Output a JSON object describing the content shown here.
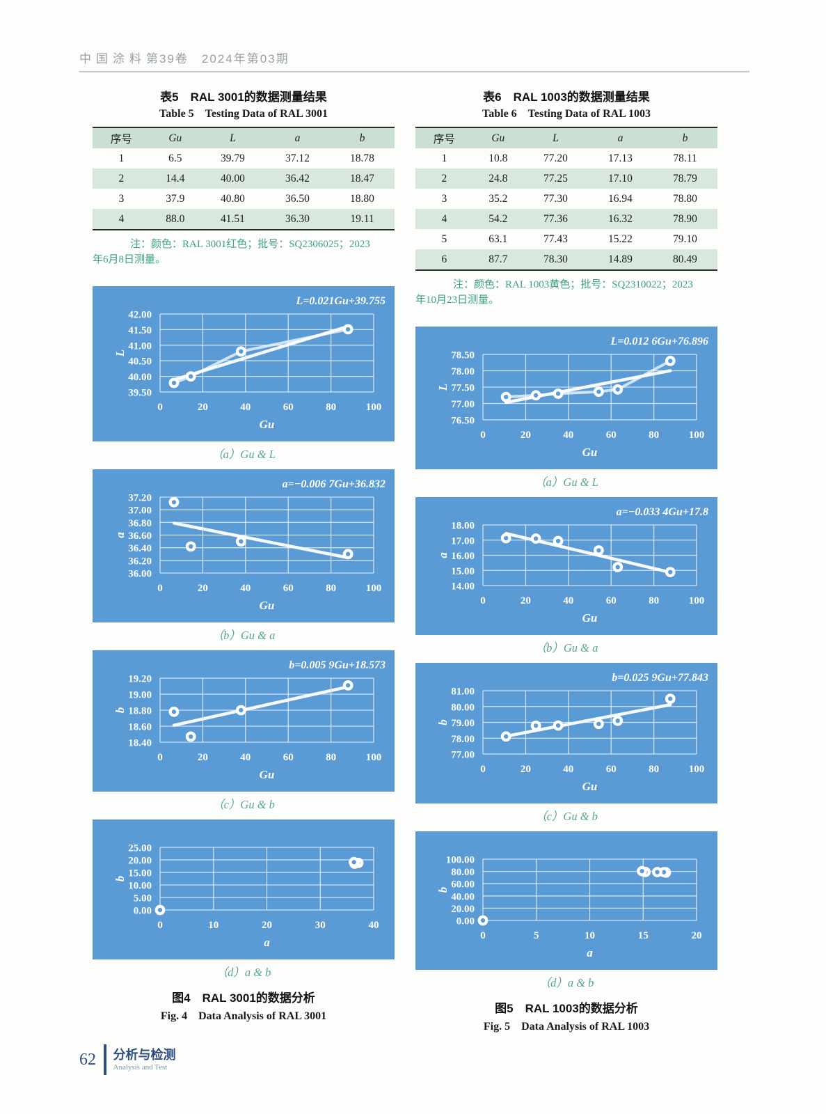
{
  "header": {
    "left": "中国涂料",
    "right": "第39卷　2024年第03期"
  },
  "footer": {
    "page_number": "62",
    "section_cn": "分析与检测",
    "section_en": "Analysis and Test"
  },
  "colors": {
    "chart_bg": "#5b9bd5",
    "chart_fg": "#ffffff",
    "table_header_bg": "#cbdfd2",
    "table_stripe_bg": "#d9e8dc",
    "note_green": "#3da183",
    "caption_green": "#55a789",
    "footer_blue": "#2d4d80"
  },
  "tables": [
    {
      "title_cn": "表5　RAL 3001的数据测量结果",
      "title_en": "Table 5　Testing Data of RAL 3001",
      "headers": [
        "序号",
        "Gu",
        "L",
        "a",
        "b"
      ],
      "rows": [
        [
          "1",
          "6.5",
          "39.79",
          "37.12",
          "18.78"
        ],
        [
          "2",
          "14.4",
          "40.00",
          "36.42",
          "18.47"
        ],
        [
          "3",
          "37.9",
          "40.80",
          "36.50",
          "18.80"
        ],
        [
          "4",
          "88.0",
          "41.51",
          "36.30",
          "19.11"
        ]
      ],
      "note_line1": "注：颜色：RAL 3001红色；批号：SQ2306025；2023",
      "note_line2": "年6月8日测量。"
    },
    {
      "title_cn": "表6　RAL 1003的数据测量结果",
      "title_en": "Table 6　Testing Data of RAL 1003",
      "headers": [
        "序号",
        "Gu",
        "L",
        "a",
        "b"
      ],
      "rows": [
        [
          "1",
          "10.8",
          "77.20",
          "17.13",
          "78.11"
        ],
        [
          "2",
          "24.8",
          "77.25",
          "17.10",
          "78.79"
        ],
        [
          "3",
          "35.2",
          "77.30",
          "16.94",
          "78.80"
        ],
        [
          "4",
          "54.2",
          "77.36",
          "16.32",
          "78.90"
        ],
        [
          "5",
          "63.1",
          "77.43",
          "15.22",
          "79.10"
        ],
        [
          "6",
          "87.7",
          "78.30",
          "14.89",
          "80.49"
        ]
      ],
      "note_line1": "注：颜色：RAL 1003黄色；批号：SQ2310022；2023",
      "note_line2": "年10月23日测量。"
    }
  ],
  "figures": [
    {
      "caption_cn": "图4　RAL 3001的数据分析",
      "caption_en": "Fig. 4　Data Analysis of RAL 3001"
    },
    {
      "caption_cn": "图5　RAL 1003的数据分析",
      "caption_en": "Fig. 5　Data Analysis of RAL 1003"
    }
  ],
  "chart_data": [
    {
      "type": "scatter",
      "caption": "（a）Gu & L",
      "equation": "L=0.021Gu+39.755",
      "xlabel": "Gu",
      "ylabel": "L",
      "xlim": [
        0,
        100
      ],
      "xticks": [
        "0",
        "20",
        "40",
        "60",
        "80",
        "100"
      ],
      "ylim": [
        39.5,
        42.0
      ],
      "yticks": [
        "39.50",
        "40.00",
        "40.50",
        "41.00",
        "41.50",
        "42.00"
      ],
      "points": [
        [
          6.5,
          39.79
        ],
        [
          14.4,
          40.0
        ],
        [
          37.9,
          40.8
        ],
        [
          88.0,
          41.51
        ]
      ],
      "connect": true,
      "trend": {
        "slope": 0.021,
        "intercept": 39.755,
        "x0": 6.5,
        "x1": 88.0
      }
    },
    {
      "type": "scatter",
      "caption": "（b）Gu & a",
      "equation": "a=−0.006 7Gu+36.832",
      "xlabel": "Gu",
      "ylabel": "a",
      "xlim": [
        0,
        100
      ],
      "xticks": [
        "0",
        "20",
        "40",
        "60",
        "80",
        "100"
      ],
      "ylim": [
        36.0,
        37.2
      ],
      "yticks": [
        "36.00",
        "36.20",
        "36.40",
        "36.60",
        "36.80",
        "37.00",
        "37.20"
      ],
      "points": [
        [
          6.5,
          37.12
        ],
        [
          14.4,
          36.42
        ],
        [
          37.9,
          36.5
        ],
        [
          88.0,
          36.3
        ]
      ],
      "connect": false,
      "trend": {
        "slope": -0.0067,
        "intercept": 36.832,
        "x0": 6.5,
        "x1": 88.0
      }
    },
    {
      "type": "scatter",
      "caption": "（c）Gu & b",
      "equation": "b=0.005 9Gu+18.573",
      "xlabel": "Gu",
      "ylabel": "b",
      "xlim": [
        0,
        100
      ],
      "xticks": [
        "0",
        "20",
        "40",
        "60",
        "80",
        "100"
      ],
      "ylim": [
        18.4,
        19.2
      ],
      "yticks": [
        "18.40",
        "18.60",
        "18.80",
        "19.00",
        "19.20"
      ],
      "points": [
        [
          6.5,
          18.78
        ],
        [
          14.4,
          18.47
        ],
        [
          37.9,
          18.8
        ],
        [
          88.0,
          19.11
        ]
      ],
      "connect": false,
      "trend": {
        "slope": 0.0059,
        "intercept": 18.573,
        "x0": 6.5,
        "x1": 88.0
      }
    },
    {
      "type": "scatter",
      "caption": "（d）a & b",
      "equation": "",
      "xlabel": "a",
      "ylabel": "b",
      "xlim": [
        0,
        40
      ],
      "xticks": [
        "0",
        "10",
        "20",
        "30",
        "40"
      ],
      "ylim": [
        0,
        25
      ],
      "yticks": [
        "0.00",
        "5.00",
        "10.00",
        "15.00",
        "20.00",
        "25.00"
      ],
      "points": [
        [
          0,
          0
        ],
        [
          37.12,
          18.78
        ],
        [
          36.42,
          18.47
        ],
        [
          36.5,
          18.8
        ],
        [
          36.3,
          19.11
        ]
      ],
      "connect": false,
      "trend": null
    },
    {
      "type": "scatter",
      "caption": "（a）Gu & L",
      "equation": "L=0.012 6Gu+76.896",
      "xlabel": "Gu",
      "ylabel": "L",
      "xlim": [
        0,
        100
      ],
      "xticks": [
        "0",
        "20",
        "40",
        "60",
        "80",
        "100"
      ],
      "ylim": [
        76.5,
        78.5
      ],
      "yticks": [
        "76.50",
        "77.00",
        "77.50",
        "78.00",
        "78.50"
      ],
      "points": [
        [
          10.8,
          77.2
        ],
        [
          24.8,
          77.25
        ],
        [
          35.2,
          77.3
        ],
        [
          54.2,
          77.36
        ],
        [
          63.1,
          77.43
        ],
        [
          87.7,
          78.3
        ]
      ],
      "connect": true,
      "trend": {
        "slope": 0.0126,
        "intercept": 76.896,
        "x0": 10.8,
        "x1": 87.7
      }
    },
    {
      "type": "scatter",
      "caption": "（b）Gu & a",
      "equation": "a=−0.033 4Gu+17.8",
      "xlabel": "Gu",
      "ylabel": "a",
      "xlim": [
        0,
        100
      ],
      "xticks": [
        "0",
        "20",
        "40",
        "60",
        "80",
        "100"
      ],
      "ylim": [
        14.0,
        18.0
      ],
      "yticks": [
        "14.00",
        "15.00",
        "16.00",
        "17.00",
        "18.00"
      ],
      "points": [
        [
          10.8,
          17.13
        ],
        [
          24.8,
          17.1
        ],
        [
          35.2,
          16.94
        ],
        [
          54.2,
          16.32
        ],
        [
          63.1,
          15.22
        ],
        [
          87.7,
          14.89
        ]
      ],
      "connect": false,
      "trend": {
        "slope": -0.0334,
        "intercept": 17.8,
        "x0": 10.8,
        "x1": 87.7
      }
    },
    {
      "type": "scatter",
      "caption": "（c）Gu & b",
      "equation": "b=0.025 9Gu+77.843",
      "xlabel": "Gu",
      "ylabel": "b",
      "xlim": [
        0,
        100
      ],
      "xticks": [
        "0",
        "20",
        "40",
        "60",
        "80",
        "100"
      ],
      "ylim": [
        77.0,
        81.0
      ],
      "yticks": [
        "77.00",
        "78.00",
        "79.00",
        "80.00",
        "81.00"
      ],
      "points": [
        [
          10.8,
          78.11
        ],
        [
          24.8,
          78.79
        ],
        [
          35.2,
          78.8
        ],
        [
          54.2,
          78.9
        ],
        [
          63.1,
          79.1
        ],
        [
          87.7,
          80.49
        ]
      ],
      "connect": false,
      "trend": {
        "slope": 0.0259,
        "intercept": 77.843,
        "x0": 10.8,
        "x1": 87.7
      }
    },
    {
      "type": "scatter",
      "caption": "（d）a & b",
      "equation": "",
      "xlabel": "a",
      "ylabel": "b",
      "xlim": [
        0,
        20
      ],
      "xticks": [
        "0",
        "5",
        "10",
        "15",
        "20"
      ],
      "ylim": [
        0,
        100
      ],
      "yticks": [
        "0.00",
        "20.00",
        "40.00",
        "60.00",
        "80.00",
        "100.00"
      ],
      "points": [
        [
          0,
          0
        ],
        [
          17.13,
          78.11
        ],
        [
          17.1,
          78.79
        ],
        [
          16.94,
          78.8
        ],
        [
          16.32,
          78.9
        ],
        [
          15.22,
          79.1
        ],
        [
          14.89,
          80.49
        ]
      ],
      "connect": false,
      "trend": null
    }
  ]
}
